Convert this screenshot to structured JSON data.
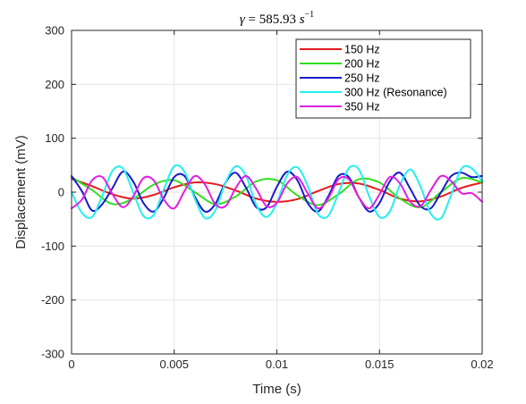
{
  "chart_data": {
    "type": "line",
    "title": {
      "symbol": "γ",
      "equals": " = ",
      "value": "585.93",
      "unit_base": " s",
      "unit_exp": "−1"
    },
    "xlabel": "Time (s)",
    "ylabel": "Displacement (mV)",
    "xlim": [
      0,
      0.02
    ],
    "ylim": [
      -300,
      300
    ],
    "xticks": [
      0,
      0.005,
      0.01,
      0.015,
      0.02
    ],
    "xtick_labels": [
      "0",
      "0.005",
      "0.01",
      "0.015",
      "0.02"
    ],
    "yticks": [
      -300,
      -200,
      -100,
      0,
      100,
      200,
      300
    ],
    "ytick_labels": [
      "-300",
      "-200",
      "-100",
      "0",
      "100",
      "200",
      "300"
    ],
    "grid": true,
    "legend_position": "top-right",
    "series": [
      {
        "name": "150 Hz",
        "color": "#e41a1c",
        "freq_hz": 150,
        "x": [
          0,
          0.001,
          0.002,
          0.003,
          0.004,
          0.005,
          0.006,
          0.007,
          0.008,
          0.009,
          0.01,
          0.011,
          0.012,
          0.013,
          0.014,
          0.015,
          0.016,
          0.017,
          0.018,
          0.019,
          0.02
        ],
        "y": [
          25,
          11,
          -4,
          -12,
          -5,
          9,
          18,
          15,
          3,
          -12,
          -18,
          -13,
          2,
          15,
          16,
          4,
          -12,
          -17,
          -8,
          8,
          18
        ]
      },
      {
        "name": "200 Hz",
        "color": "#33dd22",
        "freq_hz": 200,
        "x": [
          0,
          0.001,
          0.002,
          0.003,
          0.004,
          0.005,
          0.006,
          0.007,
          0.008,
          0.009,
          0.01,
          0.011,
          0.012,
          0.013,
          0.014,
          0.015,
          0.016,
          0.017,
          0.018,
          0.019,
          0.02
        ],
        "y": [
          28,
          4,
          -22,
          -12,
          14,
          22,
          0,
          -22,
          -8,
          20,
          22,
          -6,
          -24,
          -4,
          24,
          18,
          -12,
          -28,
          0,
          26,
          18
        ]
      },
      {
        "name": "250 Hz",
        "color": "#1a1acc",
        "freq_hz": 250,
        "x": [
          0,
          0.0005,
          0.001,
          0.0015,
          0.002,
          0.0025,
          0.003,
          0.0035,
          0.004,
          0.0045,
          0.005,
          0.0055,
          0.006,
          0.0065,
          0.007,
          0.0075,
          0.008,
          0.0085,
          0.009,
          0.0095,
          0.01,
          0.0105,
          0.011,
          0.0115,
          0.012,
          0.0125,
          0.013,
          0.0135,
          0.014,
          0.0145,
          0.015,
          0.0155,
          0.016,
          0.0165,
          0.017,
          0.0175,
          0.018,
          0.0185,
          0.019,
          0.0195,
          0.02
        ],
        "y": [
          30,
          2,
          -34,
          -22,
          8,
          38,
          20,
          -20,
          -36,
          -10,
          28,
          30,
          -8,
          -36,
          -22,
          18,
          36,
          8,
          -28,
          -28,
          10,
          38,
          22,
          -20,
          -36,
          -8,
          30,
          28,
          -10,
          -36,
          -20,
          20,
          36,
          6,
          -26,
          -30,
          0,
          30,
          36,
          28,
          30
        ]
      },
      {
        "name": "300 Hz (Resonance)",
        "color": "#22f0f0",
        "freq_hz": 300,
        "x": [
          0,
          0.0005,
          0.001,
          0.0015,
          0.002,
          0.0025,
          0.003,
          0.0035,
          0.004,
          0.0045,
          0.005,
          0.0055,
          0.006,
          0.0065,
          0.007,
          0.0075,
          0.008,
          0.0085,
          0.009,
          0.0095,
          0.01,
          0.0105,
          0.011,
          0.0115,
          0.012,
          0.0125,
          0.013,
          0.0135,
          0.014,
          0.0145,
          0.015,
          0.0155,
          0.016,
          0.0165,
          0.017,
          0.0175,
          0.018,
          0.0185,
          0.019,
          0.0195,
          0.02
        ],
        "y": [
          0,
          -38,
          -46,
          -6,
          40,
          44,
          0,
          -44,
          -42,
          6,
          48,
          38,
          -12,
          -48,
          -34,
          18,
          48,
          30,
          -24,
          -46,
          -20,
          32,
          46,
          12,
          -40,
          -44,
          -2,
          44,
          42,
          -8,
          -46,
          -36,
          14,
          42,
          10,
          -40,
          -48,
          -4,
          44,
          44,
          20
        ]
      },
      {
        "name": "350 Hz",
        "color": "#e020e0",
        "freq_hz": 350,
        "x": [
          0,
          0.0005,
          0.001,
          0.0015,
          0.002,
          0.0025,
          0.003,
          0.0035,
          0.004,
          0.0045,
          0.005,
          0.0055,
          0.006,
          0.0065,
          0.007,
          0.0075,
          0.008,
          0.0085,
          0.009,
          0.0095,
          0.01,
          0.0105,
          0.011,
          0.0115,
          0.012,
          0.0125,
          0.013,
          0.0135,
          0.014,
          0.0145,
          0.015,
          0.0155,
          0.016,
          0.0165,
          0.017,
          0.0175,
          0.018,
          0.0185,
          0.019,
          0.0195,
          0.02
        ],
        "y": [
          -30,
          -14,
          22,
          28,
          -4,
          -28,
          -8,
          26,
          22,
          -14,
          -30,
          2,
          30,
          14,
          -22,
          -26,
          8,
          30,
          6,
          -26,
          -20,
          16,
          28,
          -2,
          -30,
          -12,
          24,
          24,
          -10,
          -30,
          -4,
          28,
          16,
          -18,
          -26,
          4,
          30,
          20,
          -2,
          -2,
          -18
        ]
      }
    ]
  }
}
